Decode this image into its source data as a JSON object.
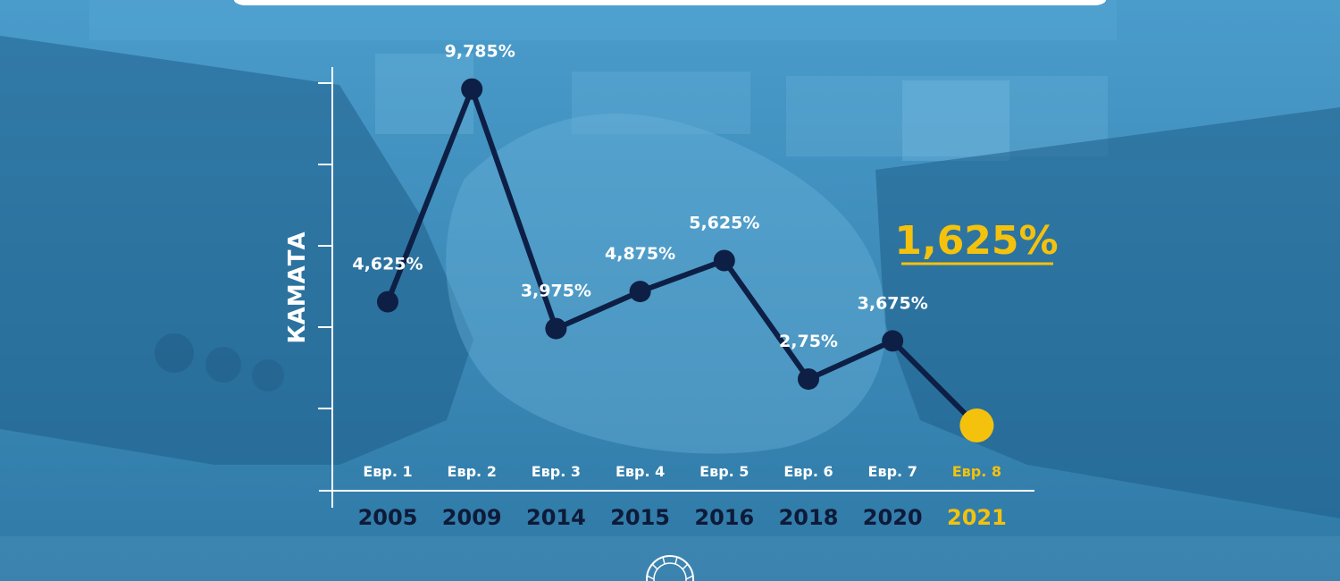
{
  "chart_data": {
    "type": "line",
    "title": "",
    "xlabel": "",
    "ylabel": "КАМАТА",
    "years": [
      "2005",
      "2009",
      "2014",
      "2015",
      "2016",
      "2018",
      "2020",
      "2021"
    ],
    "categories": [
      "Евр. 1",
      "Евр. 2",
      "Евр. 3",
      "Евр. 4",
      "Евр. 5",
      "Евр. 6",
      "Евр. 7",
      "Евр. 8"
    ],
    "values": [
      4.625,
      9.785,
      3.975,
      4.875,
      5.625,
      2.75,
      3.675,
      1.625
    ],
    "value_labels": [
      "4,625%",
      "9,785%",
      "3,975%",
      "4,875%",
      "5,625%",
      "2,75%",
      "3,675%",
      ""
    ],
    "highlight_index": 7,
    "highlight_label": "1,625%",
    "ylim": [
      0,
      10
    ],
    "grid": false,
    "colors": {
      "line": "#0e1f45",
      "marker": "#0e1f45",
      "highlight": "#f4c20d",
      "axis": "#ffffff",
      "label": "#ffffff",
      "year_text": "#0e1a38"
    }
  }
}
